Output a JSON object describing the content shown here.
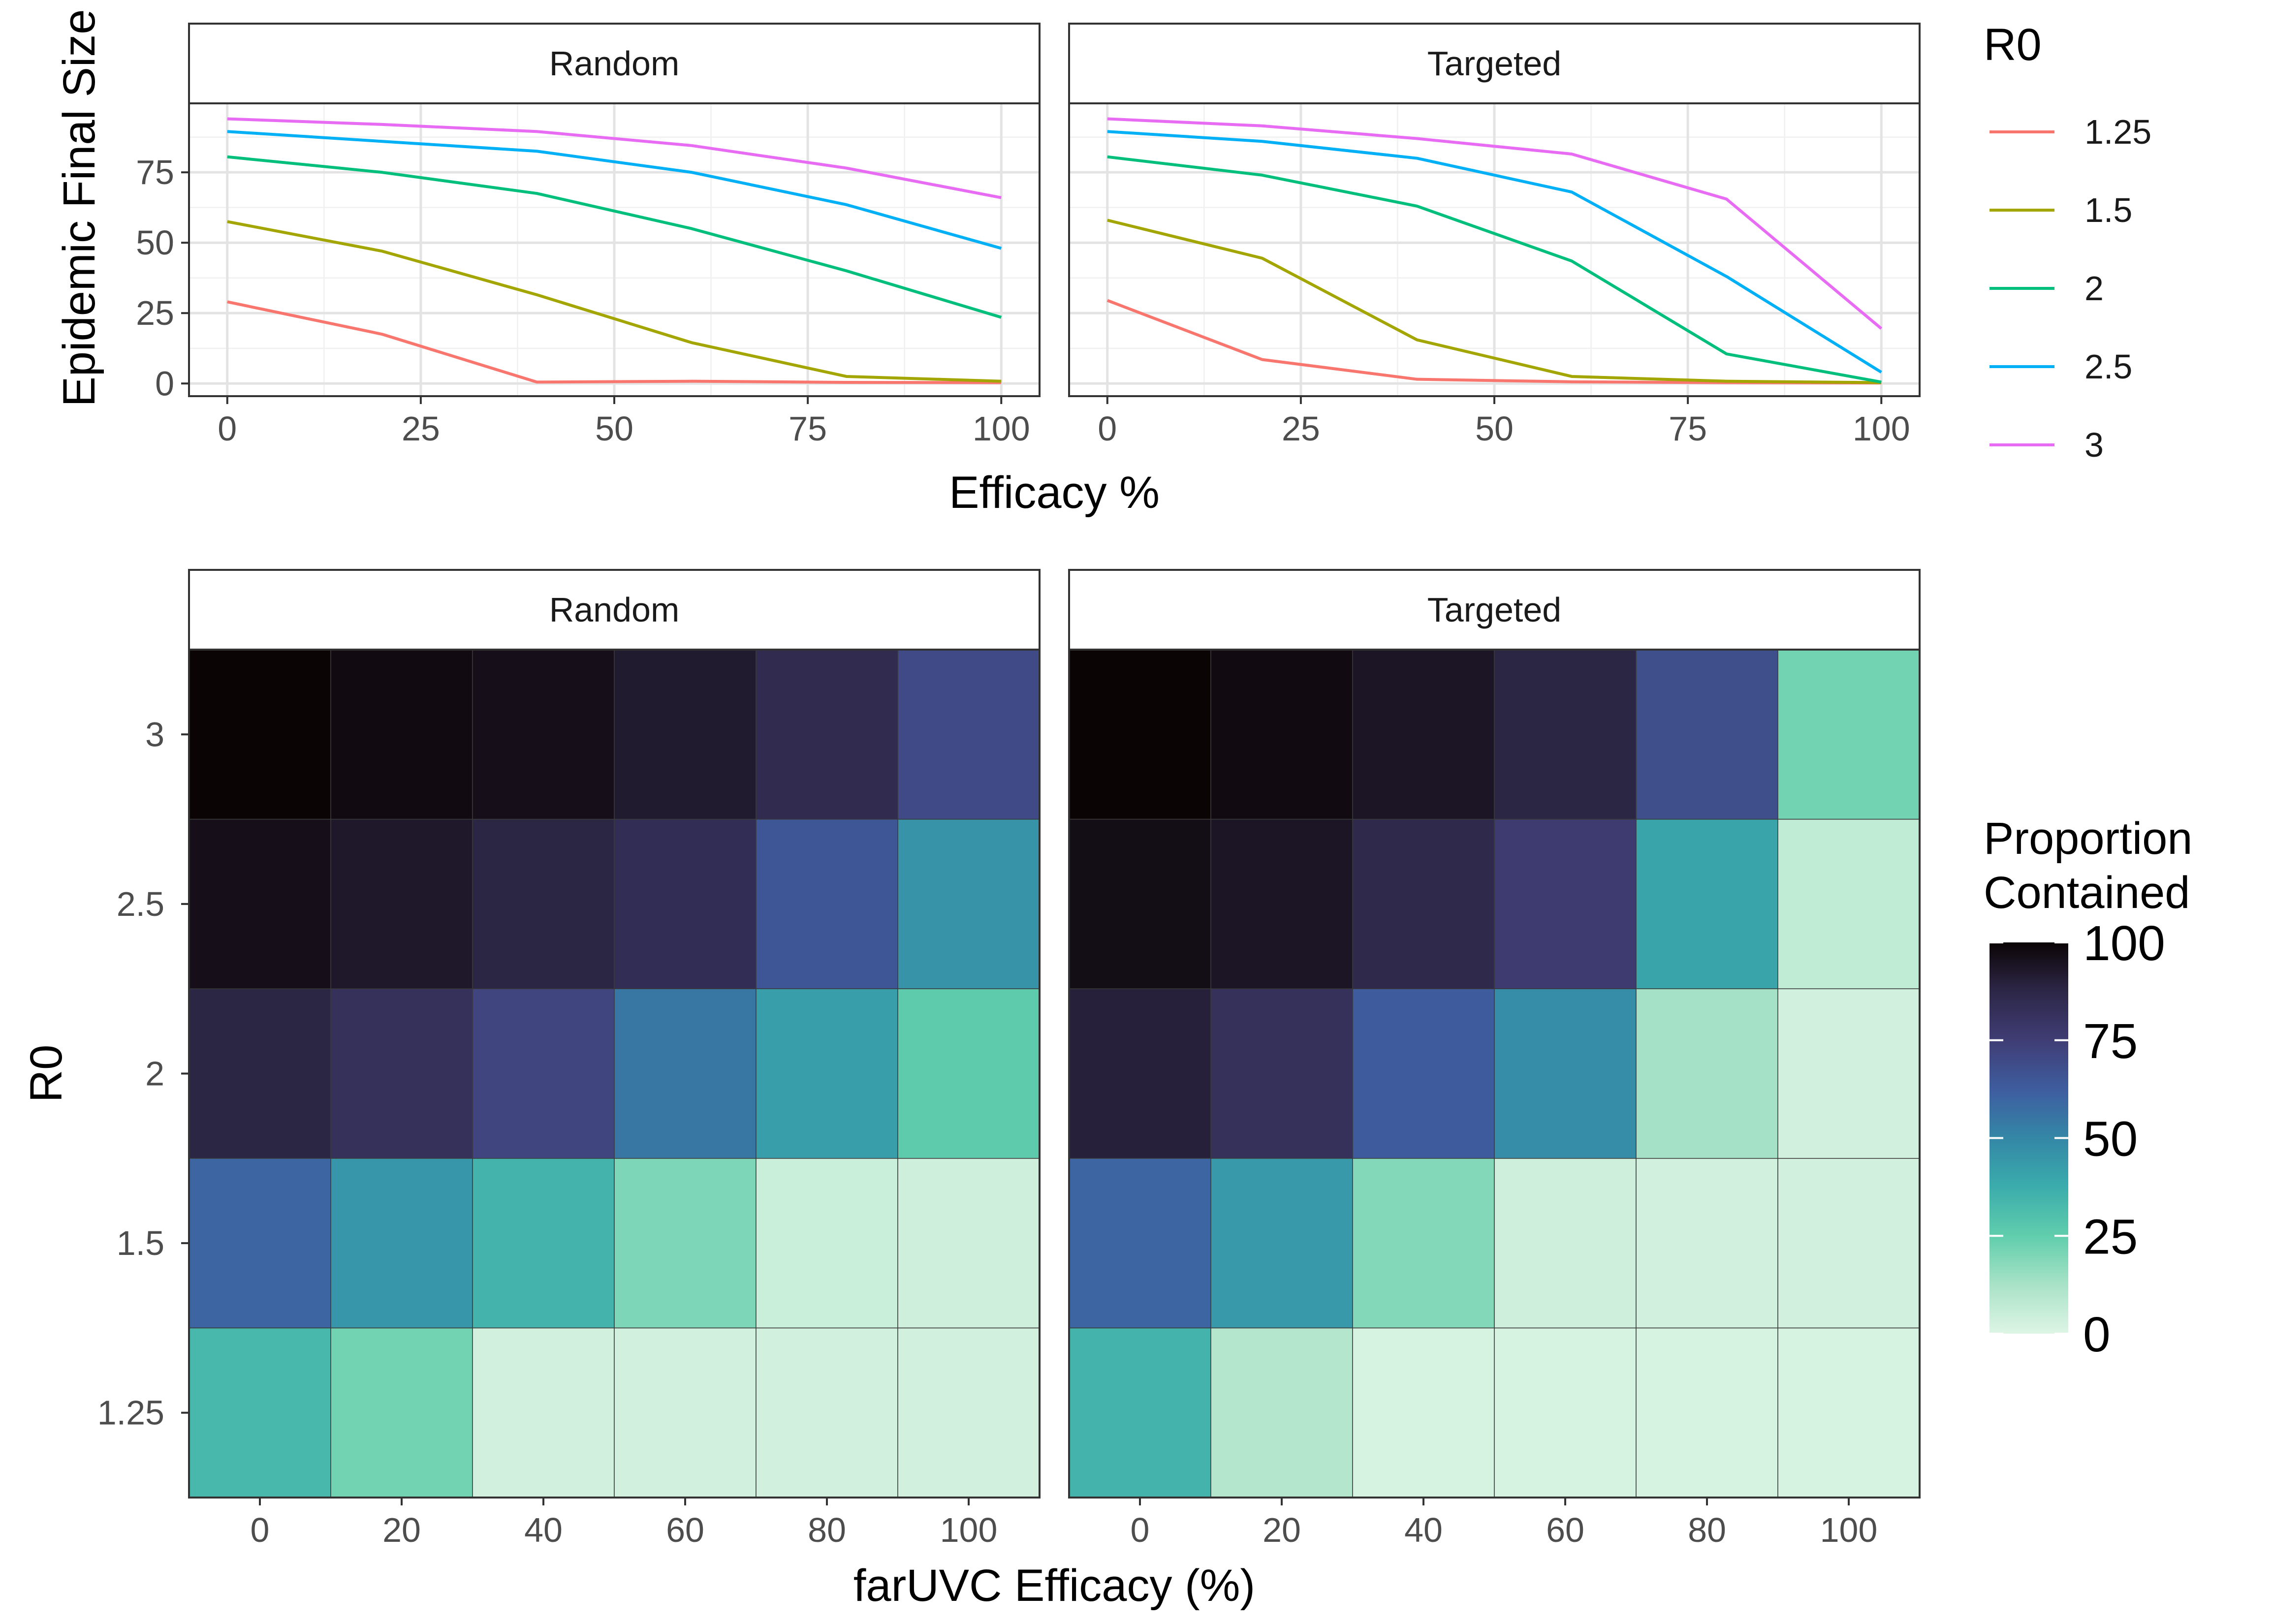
{
  "chart_data": [
    {
      "type": "line",
      "facets": [
        "Random",
        "Targeted"
      ],
      "xlabel": "Efficacy %",
      "ylabel": "Epidemic Final Size",
      "xlim": [
        0,
        100
      ],
      "ylim": [
        0,
        95
      ],
      "xticks": [
        0,
        25,
        50,
        75,
        100
      ],
      "yticks": [
        0,
        25,
        50,
        75
      ],
      "grid": true,
      "legend_title": "R0",
      "legend_position": "right",
      "x": [
        0,
        20,
        40,
        60,
        80,
        100
      ],
      "series": [
        {
          "name": "1.25",
          "color": "#F8766D",
          "values": {
            "Random": [
              29,
              17.5,
              0.5,
              0.8,
              0.4,
              0.3
            ],
            "Targeted": [
              29.5,
              8.5,
              1.5,
              0.6,
              0.3,
              0.2
            ]
          }
        },
        {
          "name": "1.5",
          "color": "#A3A500",
          "values": {
            "Random": [
              57.5,
              47,
              31.5,
              14.5,
              2.5,
              0.8
            ],
            "Targeted": [
              58,
              44.5,
              15.5,
              2.5,
              0.8,
              0.3
            ]
          }
        },
        {
          "name": "2",
          "color": "#00BF7D",
          "values": {
            "Random": [
              80.5,
              75,
              67.5,
              55,
              40,
              23.5
            ],
            "Targeted": [
              80.5,
              74,
              63,
              43.5,
              10.5,
              0.5
            ]
          }
        },
        {
          "name": "2.5",
          "color": "#00B0F6",
          "values": {
            "Random": [
              89.5,
              86,
              82.5,
              75,
              63.5,
              48
            ],
            "Targeted": [
              89.5,
              86,
              80,
              68,
              38,
              4
            ]
          }
        },
        {
          "name": "3",
          "color": "#E76BF3",
          "values": {
            "Random": [
              94,
              92,
              89.5,
              84.5,
              76.5,
              66
            ],
            "Targeted": [
              94,
              91.5,
              87,
              81.5,
              65.5,
              19.5
            ]
          }
        }
      ]
    },
    {
      "type": "heatmap",
      "facets": [
        "Random",
        "Targeted"
      ],
      "xlabel": "farUVC Efficacy (%)",
      "ylabel": "R0",
      "x_categories": [
        "0",
        "20",
        "40",
        "60",
        "80",
        "100"
      ],
      "y_categories": [
        "1.25",
        "1.5",
        "2",
        "2.5",
        "3"
      ],
      "legend_title": [
        "Proportion",
        "Contained"
      ],
      "legend_position": "right",
      "colorbar_ticks": [
        "0",
        "25",
        "50",
        "75",
        "100"
      ],
      "color_range": [
        0,
        100
      ],
      "values": {
        "Random": [
          [
            33,
            22,
            3,
            3,
            3,
            3
          ],
          [
            60,
            45,
            35,
            20,
            5,
            4
          ],
          [
            88,
            82,
            72,
            55,
            42,
            26
          ],
          [
            96,
            93,
            88,
            84,
            65,
            46
          ],
          [
            100,
            98,
            96,
            92,
            85,
            70
          ]
        ],
        "Targeted": [
          [
            35,
            10,
            2,
            2,
            2,
            2
          ],
          [
            60,
            44,
            19,
            4,
            3,
            3
          ],
          [
            90,
            82,
            63,
            48,
            13,
            3
          ],
          [
            97,
            94,
            86,
            76,
            40,
            7
          ],
          [
            100,
            98,
            94,
            88,
            68,
            22
          ]
        ]
      }
    }
  ]
}
